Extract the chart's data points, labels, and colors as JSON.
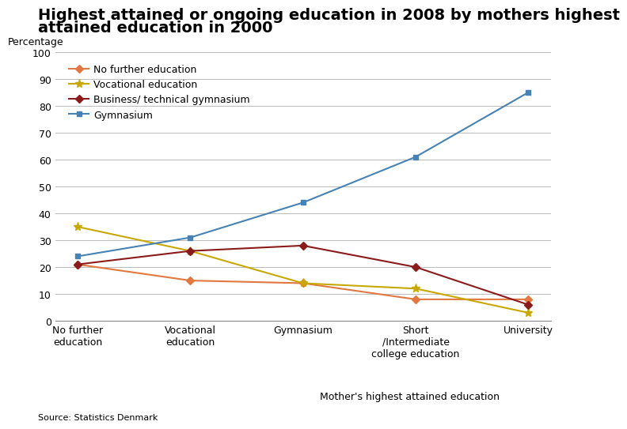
{
  "title_line1": "Highest attained or ongoing education in 2008 by mothers highest",
  "title_line2": "attained education in 2000",
  "ylabel": "Percentage",
  "xlabel": "Mother's highest attained education",
  "source": "Source: Statistics Denmark",
  "x_labels": [
    "No further\neducation",
    "Vocational\neducation",
    "Gymnasium",
    "Short\n/Intermediate\ncollege education",
    "University"
  ],
  "series": [
    {
      "name": "No further education",
      "color": "#E07840",
      "values": [
        21,
        15,
        14,
        8,
        8
      ],
      "marker": "D",
      "markersize": 5
    },
    {
      "name": "Vocational education",
      "color": "#C8A800",
      "values": [
        35,
        26,
        14,
        12,
        3
      ],
      "marker": "*",
      "markersize": 8
    },
    {
      "name": "Business/ technical gymnasium",
      "color": "#8B1A1A",
      "values": [
        21,
        26,
        28,
        20,
        6
      ],
      "marker": "D",
      "markersize": 5
    },
    {
      "name": "Gymnasium",
      "color": "#4682B4",
      "values": [
        24,
        31,
        44,
        61,
        85
      ],
      "marker": "s",
      "markersize": 5
    }
  ],
  "ylim": [
    0,
    100
  ],
  "yticks": [
    0,
    10,
    20,
    30,
    40,
    50,
    60,
    70,
    80,
    90,
    100
  ],
  "background_color": "#ffffff",
  "grid_color": "#bbbbbb",
  "title_fontsize": 14,
  "axis_label_fontsize": 9,
  "tick_fontsize": 9,
  "legend_fontsize": 9,
  "source_fontsize": 8
}
